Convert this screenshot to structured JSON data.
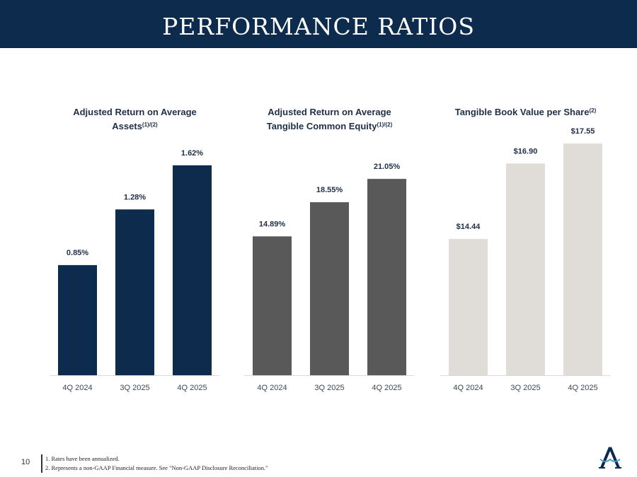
{
  "header": {
    "title": "PERFORMANCE RATIOS"
  },
  "colors": [
    "#0d2b4c",
    "#595959",
    "#e0ddd8"
  ],
  "chart_data": [
    {
      "type": "bar",
      "title": "Adjusted Return on Average Assets",
      "title_lines": [
        "Adjusted Return on Average",
        "Assets"
      ],
      "title_sup": "(1)/(2)",
      "categories": [
        "4Q 2024",
        "3Q 2025",
        "4Q 2025"
      ],
      "values": [
        0.85,
        1.28,
        1.62
      ],
      "labels": [
        "0.85%",
        "1.28%",
        "1.62%"
      ],
      "ylim": [
        0,
        1.8
      ],
      "color": "#0d2b4c"
    },
    {
      "type": "bar",
      "title": "Adjusted Return on Average Tangible Common Equity",
      "title_lines": [
        "Adjusted Return on Average",
        "Tangible Common Equity"
      ],
      "title_sup": "(1)/(2)",
      "categories": [
        "4Q 2024",
        "3Q 2025",
        "4Q 2025"
      ],
      "values": [
        14.89,
        18.55,
        21.05
      ],
      "labels": [
        "14.89%",
        "18.55%",
        "21.05%"
      ],
      "ylim": [
        0,
        25
      ],
      "color": "#595959"
    },
    {
      "type": "bar",
      "title": "Tangible Book Value per Share",
      "title_lines": [
        "Tangible Book Value per Share"
      ],
      "title_sup": "(2)",
      "categories": [
        "4Q 2024",
        "3Q 2025",
        "4Q 2025"
      ],
      "values": [
        14.44,
        16.9,
        17.55
      ],
      "labels": [
        "$14.44",
        "$16.90",
        "$17.55"
      ],
      "ylim": [
        10,
        17.6
      ],
      "color": "#e0ddd8"
    }
  ],
  "footer": {
    "page": "10",
    "notes": [
      "1. Rates have been annualized.",
      "2. Represents a non-GAAP Financial measure. See \"Non-GAAP Disclosure Reconciliation.\""
    ]
  }
}
